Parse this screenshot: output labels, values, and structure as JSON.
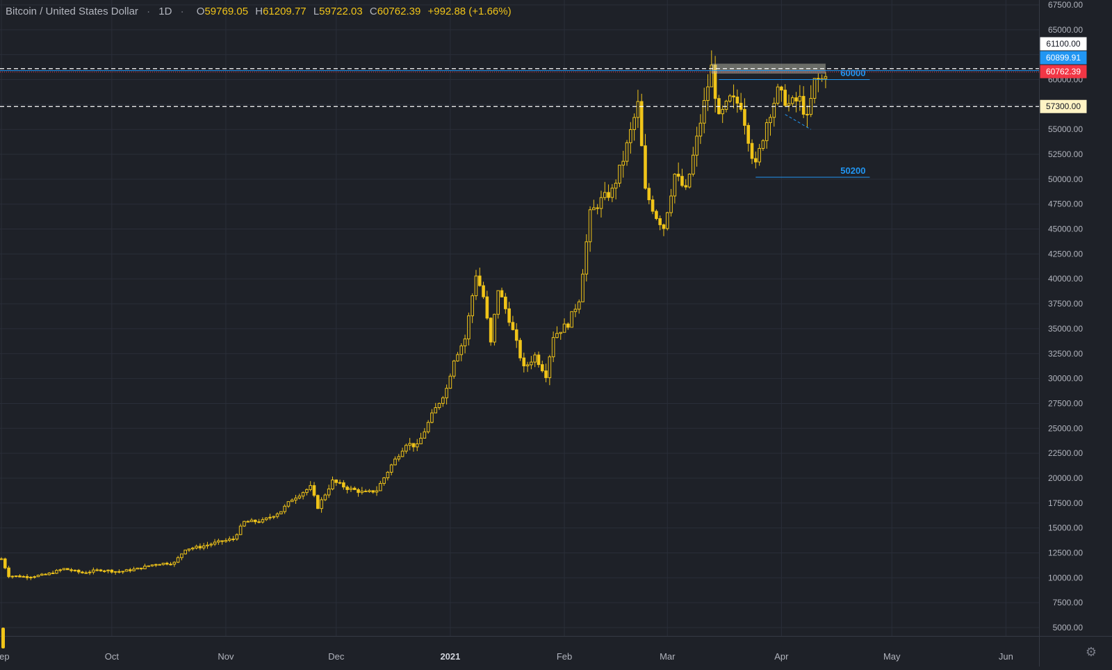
{
  "header": {
    "symbol": "Bitcoin / United States Dollar",
    "interval": "1D",
    "ohlc": [
      {
        "key": "O",
        "value": "59769.05"
      },
      {
        "key": "H",
        "value": "61209.77"
      },
      {
        "key": "L",
        "value": "59722.03"
      },
      {
        "key": "C",
        "value": "60762.39"
      }
    ],
    "change": "+992.88 (+1.66%)"
  },
  "chart_data": {
    "type": "candlestick",
    "title": "Bitcoin / United States Dollar",
    "interval": "1D",
    "y_axis": {
      "ylim": [
        5000,
        67500
      ],
      "ticks": [
        "67500.00",
        "65000.00",
        "62500.00",
        "60000.00",
        "57500.00",
        "55000.00",
        "52500.00",
        "50000.00",
        "47500.00",
        "45000.00",
        "42500.00",
        "40000.00",
        "37500.00",
        "35000.00",
        "32500.00",
        "30000.00",
        "27500.00",
        "25000.00",
        "22500.00",
        "20000.00",
        "17500.00",
        "15000.00",
        "12500.00",
        "10000.00",
        "7500.00",
        "5000.00"
      ]
    },
    "x_axis": {
      "labels": [
        "Sep",
        "Oct",
        "Nov",
        "Dec",
        "2021",
        "Feb",
        "Mar",
        "Apr",
        "May",
        "Jun"
      ],
      "start": "2020-09-01",
      "end": "2021-06-10"
    },
    "series": [
      {
        "color": "#f0c419",
        "points": [
          [
            "2020-09-01",
            11900
          ],
          [
            "2020-09-03",
            10200
          ],
          [
            "2020-09-08",
            10100
          ],
          [
            "2020-09-13",
            10300
          ],
          [
            "2020-09-18",
            10900
          ],
          [
            "2020-09-23",
            10500
          ],
          [
            "2020-09-28",
            10800
          ],
          [
            "2020-10-03",
            10600
          ],
          [
            "2020-10-08",
            10900
          ],
          [
            "2020-10-13",
            11400
          ],
          [
            "2020-10-18",
            11500
          ],
          [
            "2020-10-21",
            12900
          ],
          [
            "2020-10-25",
            13100
          ],
          [
            "2020-10-29",
            13500
          ],
          [
            "2020-11-03",
            13900
          ],
          [
            "2020-11-06",
            15600
          ],
          [
            "2020-11-11",
            15700
          ],
          [
            "2020-11-16",
            16700
          ],
          [
            "2020-11-19",
            17900
          ],
          [
            "2020-11-24",
            19100
          ],
          [
            "2020-11-26",
            17100
          ],
          [
            "2020-11-30",
            19700
          ],
          [
            "2020-12-04",
            19000
          ],
          [
            "2020-12-09",
            18500
          ],
          [
            "2020-12-12",
            18800
          ],
          [
            "2020-12-16",
            21300
          ],
          [
            "2020-12-20",
            23500
          ],
          [
            "2020-12-23",
            23200
          ],
          [
            "2020-12-27",
            26300
          ],
          [
            "2020-12-31",
            29000
          ],
          [
            "2021-01-02",
            32000
          ],
          [
            "2021-01-05",
            34000
          ],
          [
            "2021-01-08",
            40500
          ],
          [
            "2021-01-10",
            38200
          ],
          [
            "2021-01-12",
            33500
          ],
          [
            "2021-01-14",
            39000
          ],
          [
            "2021-01-17",
            36000
          ],
          [
            "2021-01-21",
            31000
          ],
          [
            "2021-01-24",
            32300
          ],
          [
            "2021-01-27",
            30400
          ],
          [
            "2021-01-29",
            34300
          ],
          [
            "2021-02-02",
            35500
          ],
          [
            "2021-02-05",
            38000
          ],
          [
            "2021-02-08",
            46500
          ],
          [
            "2021-02-11",
            47900
          ],
          [
            "2021-02-14",
            48800
          ],
          [
            "2021-02-17",
            52000
          ],
          [
            "2021-02-21",
            57500
          ],
          [
            "2021-02-23",
            48800
          ],
          [
            "2021-02-26",
            46300
          ],
          [
            "2021-02-28",
            45200
          ],
          [
            "2021-03-03",
            50500
          ],
          [
            "2021-03-06",
            48800
          ],
          [
            "2021-03-09",
            54000
          ],
          [
            "2021-03-13",
            61200
          ],
          [
            "2021-03-15",
            56000
          ],
          [
            "2021-03-18",
            58000
          ],
          [
            "2021-03-21",
            57500
          ],
          [
            "2021-03-24",
            52500
          ],
          [
            "2021-03-25",
            51300
          ],
          [
            "2021-03-28",
            55800
          ],
          [
            "2021-03-31",
            58800
          ],
          [
            "2021-04-03",
            57500
          ],
          [
            "2021-04-06",
            58000
          ],
          [
            "2021-04-08",
            56000
          ],
          [
            "2021-04-10",
            59800
          ],
          [
            "2021-04-12",
            60000
          ],
          [
            "2021-04-13",
            60762.39
          ]
        ]
      }
    ],
    "horizontal_lines": [
      {
        "value": 61100,
        "label": "61100.00",
        "style": "dashed",
        "color": "#ffffff"
      },
      {
        "value": 57300,
        "label": "57300.00",
        "style": "dashed",
        "color": "#ffffff"
      },
      {
        "value": 60899.91,
        "label": "60899.91",
        "style": "solid",
        "color": "#2196f3"
      },
      {
        "value": 60762.39,
        "label": "60762.39",
        "style": "price",
        "color": "#f23645"
      }
    ],
    "annotations": [
      {
        "text": "60000",
        "value": 60000,
        "color": "#2196f3"
      },
      {
        "text": "50200",
        "value": 50200,
        "color": "#2196f3"
      }
    ],
    "grid": true
  },
  "ui": {
    "settings_icon": "gear-icon"
  }
}
